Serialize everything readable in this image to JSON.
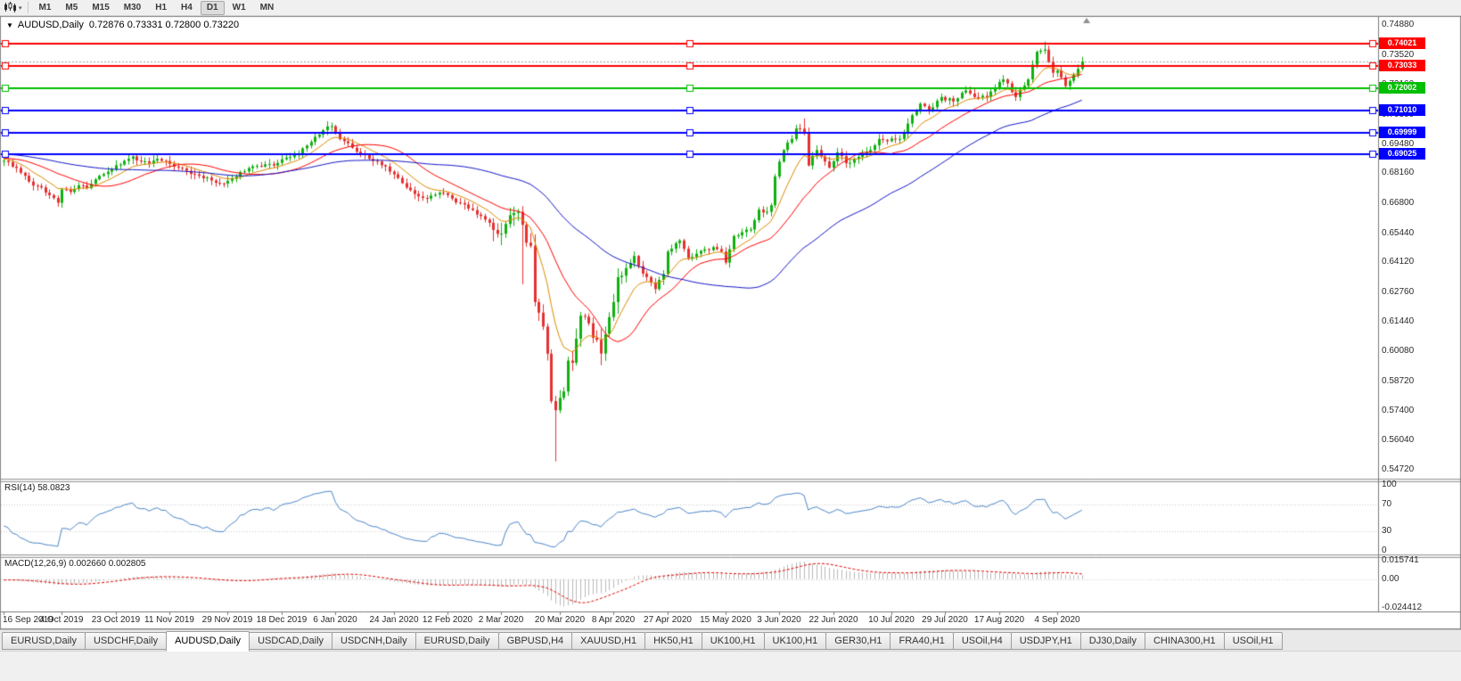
{
  "toolbar": {
    "timeframes": [
      "M1",
      "M5",
      "M15",
      "M30",
      "H1",
      "H4",
      "D1",
      "W1",
      "MN"
    ],
    "active": "D1",
    "dropdown_glyph": "▾"
  },
  "chart": {
    "title": "AUDUSD,Daily",
    "ohlc_text": "0.72876 0.73331 0.72800 0.73220",
    "one_click_arrow": "▼"
  },
  "price_scale": {
    "min": 0.544,
    "max": 0.752,
    "labels": [
      "0.74880",
      "0.73520",
      "0.72160",
      "0.70800",
      "0.69480",
      "0.68160",
      "0.66800",
      "0.65440",
      "0.64120",
      "0.62760",
      "0.61440",
      "0.60080",
      "0.58720",
      "0.57400",
      "0.56040",
      "0.54720"
    ]
  },
  "hlines": [
    {
      "price": 0.74021,
      "label": "0.74021",
      "color": "#FF0000"
    },
    {
      "price": 0.73033,
      "label": "0.73033",
      "color": "#FF0000"
    },
    {
      "price": 0.72002,
      "label": "0.72002",
      "color": "#00BE00"
    },
    {
      "price": 0.7101,
      "label": "0.71010",
      "color": "#0000FF"
    },
    {
      "price": 0.69999,
      "label": "0.69999",
      "color": "#0000FF"
    },
    {
      "price": 0.69025,
      "label": "0.69025",
      "color": "#0000FF"
    }
  ],
  "bid_line": {
    "price": 0.7322,
    "color": "#a0a0a0"
  },
  "date_axis": [
    {
      "i": 0,
      "text": "16 Sep 2019"
    },
    {
      "i": 14,
      "text": "4 Oct 2019"
    },
    {
      "i": 27,
      "text": "23 Oct 2019"
    },
    {
      "i": 40,
      "text": "11 Nov 2019"
    },
    {
      "i": 54,
      "text": "29 Nov 2019"
    },
    {
      "i": 67,
      "text": "18 Dec 2019"
    },
    {
      "i": 80,
      "text": "6 Jan 2020"
    },
    {
      "i": 94,
      "text": "24 Jan 2020"
    },
    {
      "i": 107,
      "text": "12 Feb 2020"
    },
    {
      "i": 120,
      "text": "2 Mar 2020"
    },
    {
      "i": 134,
      "text": "20 Mar 2020"
    },
    {
      "i": 147,
      "text": "8 Apr 2020"
    },
    {
      "i": 160,
      "text": "27 Apr 2020"
    },
    {
      "i": 174,
      "text": "15 May 2020"
    },
    {
      "i": 187,
      "text": "3 Jun 2020"
    },
    {
      "i": 200,
      "text": "22 Jun 2020"
    },
    {
      "i": 214,
      "text": "10 Jul 2020"
    },
    {
      "i": 227,
      "text": "29 Jul 2020"
    },
    {
      "i": 240,
      "text": "17 Aug 2020"
    },
    {
      "i": 254,
      "text": "4 Sep 2020"
    }
  ],
  "chart_data": {
    "type": "candlestick",
    "symbol": "AUDUSD",
    "timeframe": "Daily",
    "candle_count": 261,
    "seed": 7,
    "colors": {
      "up": "#0FB00F",
      "down": "#E53030"
    },
    "price_path": [
      [
        0,
        0.6872
      ],
      [
        2,
        0.6846
      ],
      [
        4,
        0.6818
      ],
      [
        6,
        0.6778
      ],
      [
        8,
        0.6758
      ],
      [
        10,
        0.6728
      ],
      [
        12,
        0.6704
      ],
      [
        13,
        0.6682
      ],
      [
        14,
        0.6742
      ],
      [
        16,
        0.6731
      ],
      [
        18,
        0.6761
      ],
      [
        20,
        0.6748
      ],
      [
        22,
        0.6788
      ],
      [
        24,
        0.6812
      ],
      [
        27,
        0.6852
      ],
      [
        29,
        0.6872
      ],
      [
        31,
        0.6892
      ],
      [
        33,
        0.6869
      ],
      [
        35,
        0.6861
      ],
      [
        37,
        0.6881
      ],
      [
        39,
        0.6872
      ],
      [
        40,
        0.6858
      ],
      [
        42,
        0.6841
      ],
      [
        44,
        0.6827
      ],
      [
        46,
        0.6811
      ],
      [
        48,
        0.6793
      ],
      [
        50,
        0.6783
      ],
      [
        53,
        0.6769
      ],
      [
        55,
        0.6791
      ],
      [
        57,
        0.6821
      ],
      [
        59,
        0.6839
      ],
      [
        61,
        0.6849
      ],
      [
        63,
        0.6856
      ],
      [
        65,
        0.6851
      ],
      [
        67,
        0.6879
      ],
      [
        69,
        0.6889
      ],
      [
        71,
        0.6906
      ],
      [
        73,
        0.6941
      ],
      [
        75,
        0.6981
      ],
      [
        77,
        0.7011
      ],
      [
        79,
        0.7029
      ],
      [
        80,
        0.6996
      ],
      [
        82,
        0.6961
      ],
      [
        84,
        0.6931
      ],
      [
        86,
        0.6906
      ],
      [
        88,
        0.6881
      ],
      [
        90,
        0.6869
      ],
      [
        92,
        0.6846
      ],
      [
        94,
        0.6811
      ],
      [
        96,
        0.6771
      ],
      [
        98,
        0.6739
      ],
      [
        100,
        0.6711
      ],
      [
        102,
        0.6701
      ],
      [
        104,
        0.6719
      ],
      [
        106,
        0.6726
      ],
      [
        108,
        0.6701
      ],
      [
        110,
        0.6681
      ],
      [
        112,
        0.6656
      ],
      [
        114,
        0.6629
      ],
      [
        116,
        0.6606
      ],
      [
        118,
        0.6559
      ],
      [
        119,
        0.6541
      ],
      [
        120,
        0.6542
      ],
      [
        121,
        0.6586
      ],
      [
        122,
        0.6626
      ],
      [
        123,
        0.6636
      ],
      [
        124,
        0.6641
      ],
      [
        125,
        0.6582
      ],
      [
        126,
        0.6501
      ],
      [
        127,
        0.6487
      ],
      [
        128,
        0.6232
      ],
      [
        129,
        0.6184
      ],
      [
        130,
        0.6121
      ],
      [
        131,
        0.5998
      ],
      [
        132,
        0.5783
      ],
      [
        133,
        0.5742
      ],
      [
        134,
        0.5798
      ],
      [
        135,
        0.5827
      ],
      [
        136,
        0.5967
      ],
      [
        137,
        0.5957
      ],
      [
        138,
        0.6066
      ],
      [
        139,
        0.617
      ],
      [
        140,
        0.6166
      ],
      [
        141,
        0.6136
      ],
      [
        142,
        0.607
      ],
      [
        143,
        0.6061
      ],
      [
        144,
        0.5999
      ],
      [
        145,
        0.6087
      ],
      [
        146,
        0.6164
      ],
      [
        147,
        0.6232
      ],
      [
        148,
        0.6345
      ],
      [
        150,
        0.6386
      ],
      [
        152,
        0.6441
      ],
      [
        154,
        0.6361
      ],
      [
        156,
        0.6321
      ],
      [
        157,
        0.6291
      ],
      [
        159,
        0.6359
      ],
      [
        160,
        0.6461
      ],
      [
        162,
        0.6499
      ],
      [
        163,
        0.6511
      ],
      [
        165,
        0.6431
      ],
      [
        167,
        0.6451
      ],
      [
        169,
        0.6471
      ],
      [
        171,
        0.6481
      ],
      [
        173,
        0.6461
      ],
      [
        174,
        0.6411
      ],
      [
        176,
        0.6531
      ],
      [
        178,
        0.6549
      ],
      [
        180,
        0.6561
      ],
      [
        182,
        0.6651
      ],
      [
        184,
        0.6641
      ],
      [
        185,
        0.6671
      ],
      [
        186,
        0.6801
      ],
      [
        188,
        0.6921
      ],
      [
        190,
        0.6971
      ],
      [
        191,
        0.7019
      ],
      [
        193,
        0.7001
      ],
      [
        194,
        0.6851
      ],
      [
        196,
        0.6921
      ],
      [
        198,
        0.6869
      ],
      [
        199,
        0.6841
      ],
      [
        201,
        0.6911
      ],
      [
        203,
        0.6861
      ],
      [
        205,
        0.6881
      ],
      [
        207,
        0.6901
      ],
      [
        209,
        0.6921
      ],
      [
        211,
        0.6971
      ],
      [
        213,
        0.6961
      ],
      [
        216,
        0.6971
      ],
      [
        218,
        0.7041
      ],
      [
        221,
        0.7131
      ],
      [
        223,
        0.7101
      ],
      [
        226,
        0.7161
      ],
      [
        229,
        0.7141
      ],
      [
        232,
        0.7191
      ],
      [
        234,
        0.7161
      ],
      [
        237,
        0.7161
      ],
      [
        239,
        0.7201
      ],
      [
        241,
        0.7241
      ],
      [
        244,
        0.7161
      ],
      [
        247,
        0.7241
      ],
      [
        249,
        0.7366
      ],
      [
        250,
        0.7371
      ],
      [
        251,
        0.7376
      ],
      [
        252,
        0.7321
      ],
      [
        253,
        0.7271
      ],
      [
        254,
        0.7281
      ],
      [
        256,
        0.7211
      ],
      [
        258,
        0.7261
      ],
      [
        259,
        0.7289
      ],
      [
        260,
        0.7322
      ]
    ],
    "wick_overrides": [
      {
        "i": 13,
        "low": 0.6671
      },
      {
        "i": 125,
        "low": 0.6313
      },
      {
        "i": 128,
        "low": 0.6213
      },
      {
        "i": 133,
        "low": 0.551
      },
      {
        "i": 193,
        "high": 0.7064
      },
      {
        "i": 251,
        "high": 0.7413
      }
    ],
    "moving_averages": [
      {
        "period": 10,
        "type": "ema",
        "color": "#DD8A00",
        "width": 1
      },
      {
        "period": 21,
        "type": "sma",
        "color": "#FF0000",
        "width": 1
      },
      {
        "period": 55,
        "type": "sma",
        "color": "#1414C8",
        "width": 1
      }
    ]
  },
  "rsi": {
    "label": "RSI(14) 58.0823",
    "period": 14,
    "color": "#4A86C8",
    "levels": [
      {
        "v": 100,
        "text": "100"
      },
      {
        "v": 70,
        "text": "70"
      },
      {
        "v": 30,
        "text": "30"
      },
      {
        "v": 0,
        "text": "0"
      }
    ]
  },
  "macd": {
    "label": "MACD(12,26,9) 0.002660 0.002805",
    "fast": 12,
    "slow": 26,
    "signal": 9,
    "hist_color": "#b9b9b9",
    "signal_color": "#E00000",
    "max": 0.015741,
    "min": -0.024412,
    "scale": [
      {
        "v": 0.015741,
        "text": "0.015741"
      },
      {
        "v": 0,
        "text": "0.00"
      },
      {
        "v": -0.024412,
        "text": "-0.024412"
      }
    ]
  },
  "tabs": [
    "EURUSD,Daily",
    "USDCHF,Daily",
    "AUDUSD,Daily",
    "USDCAD,Daily",
    "USDCNH,Daily",
    "EURUSD,Daily",
    "GBPUSD,H4",
    "XAUUSD,H1",
    "HK50,H1",
    "UK100,H1",
    "UK100,H1",
    "GER30,H1",
    "FRA40,H1",
    "USOil,H4",
    "USDJPY,H1",
    "DJ30,Daily",
    "CHINA300,H1",
    "USOil,H1"
  ],
  "tabs_active_index": 2
}
